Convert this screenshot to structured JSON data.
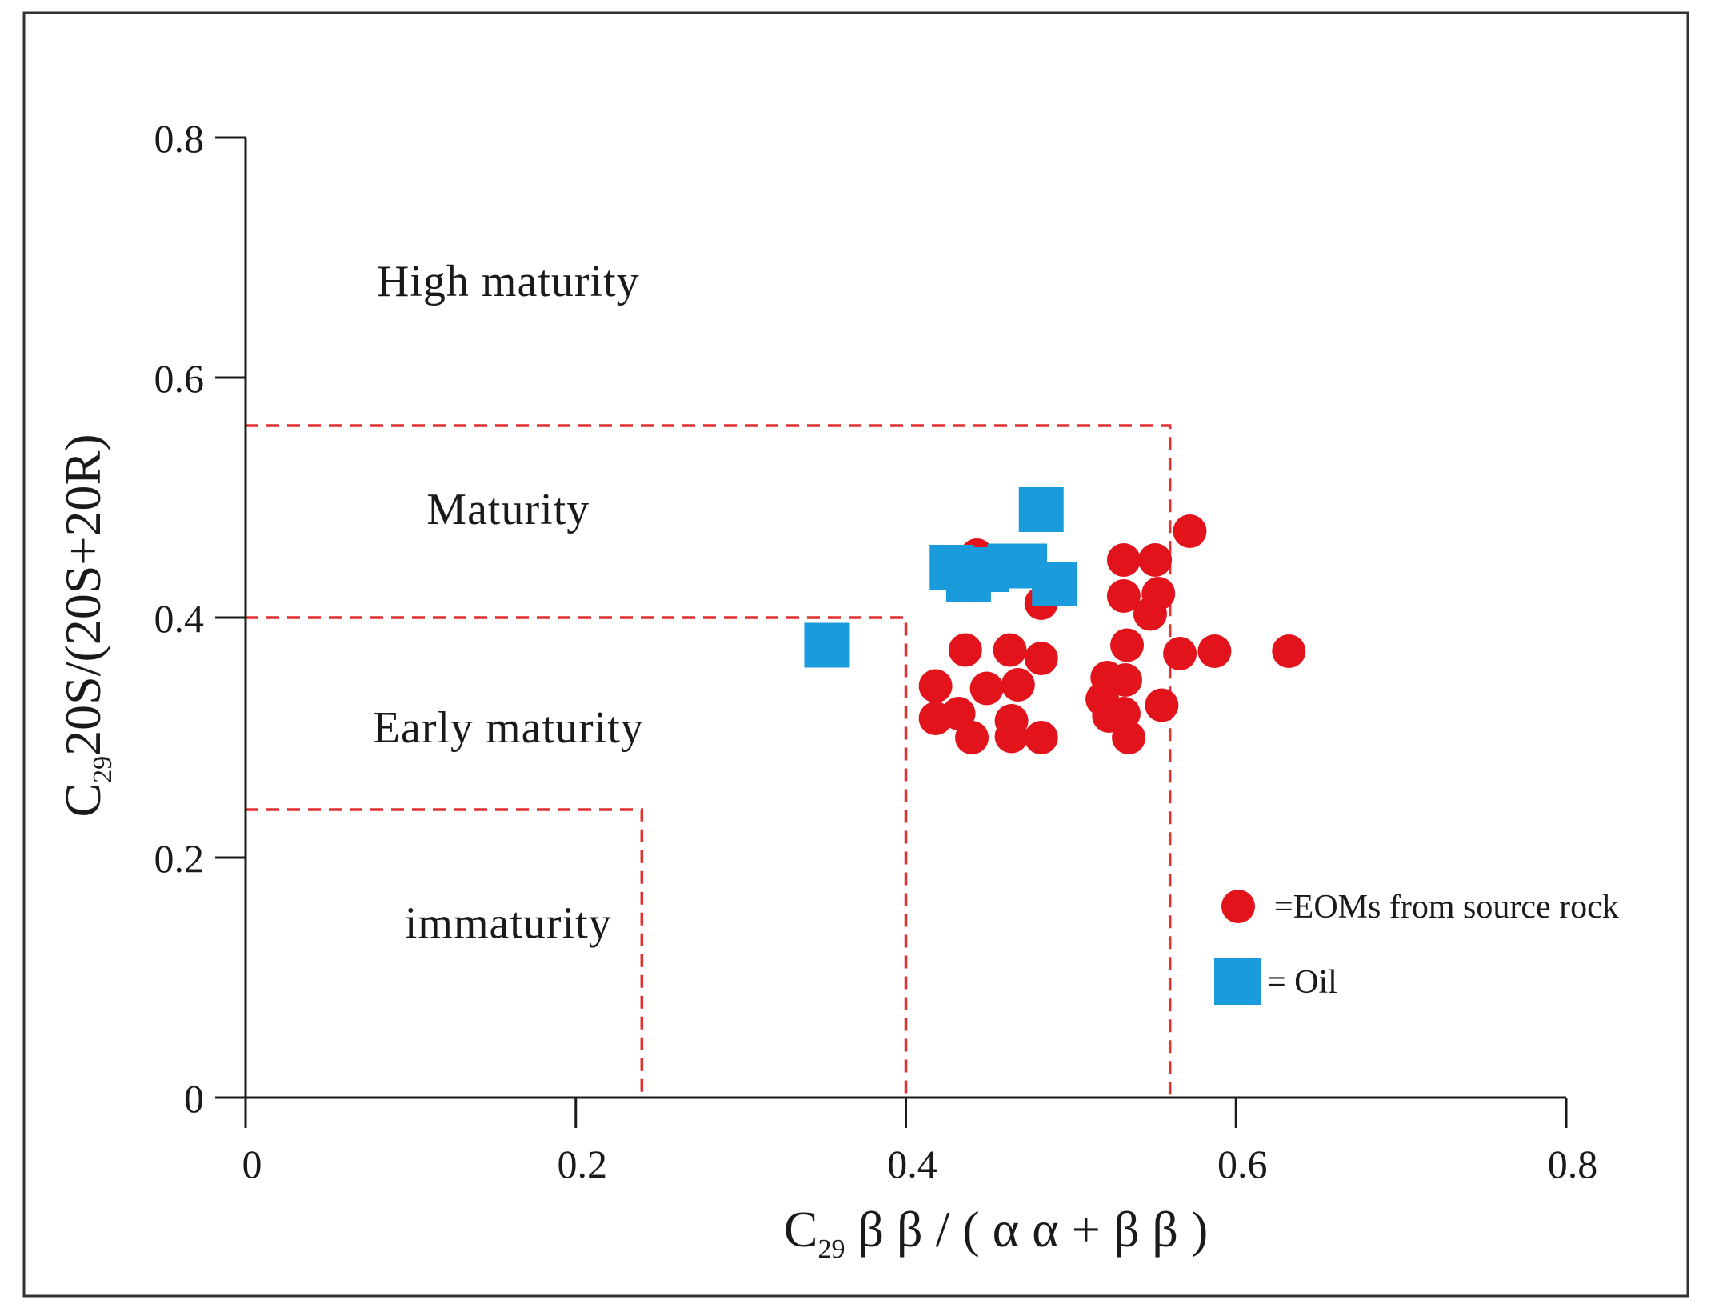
{
  "chart_data": {
    "type": "scatter",
    "title": "",
    "xlabel": {
      "base": "C",
      "sub": "29",
      "rest": "β  β / ( α  α + β  β )"
    },
    "ylabel": {
      "base": "C",
      "sub": "29",
      "rest": "20S/(20S+20R)"
    },
    "xlim": [
      0,
      0.8
    ],
    "ylim": [
      0,
      0.8
    ],
    "x_ticks": [
      0,
      0.2,
      0.4,
      0.6,
      0.8
    ],
    "x_tick_labels": [
      "0",
      "0.2",
      "0.4",
      "0.6",
      "0.8"
    ],
    "y_ticks": [
      0,
      0.2,
      0.4,
      0.6,
      0.8
    ],
    "y_tick_labels": [
      "0",
      "0.2",
      "0.4",
      "0.6",
      "0.8"
    ],
    "zones": [
      {
        "name": "High maturity",
        "label_x": 0.13,
        "label_y": 0.68
      },
      {
        "name": "Maturity",
        "label_x": 0.13,
        "label_y": 0.49
      },
      {
        "name": "Early maturity",
        "label_x": 0.13,
        "label_y": 0.308
      },
      {
        "name": "immaturity",
        "label_x": 0.13,
        "label_y": 0.145
      }
    ],
    "boundaries": [
      {
        "x_max": 0.24,
        "y_max": 0.24
      },
      {
        "x_max": 0.4,
        "y_max": 0.4
      },
      {
        "x_max": 0.56,
        "y_max": 0.56
      }
    ],
    "boundary_color": "#e03030",
    "series": [
      {
        "name": "=EOMs from source rock",
        "marker": "circle",
        "color": "#e3131b",
        "points": [
          [
            0.443,
            0.452
          ],
          [
            0.482,
            0.412
          ],
          [
            0.532,
            0.448
          ],
          [
            0.551,
            0.448
          ],
          [
            0.572,
            0.472
          ],
          [
            0.532,
            0.418
          ],
          [
            0.553,
            0.42
          ],
          [
            0.548,
            0.403
          ],
          [
            0.436,
            0.373
          ],
          [
            0.463,
            0.373
          ],
          [
            0.482,
            0.366
          ],
          [
            0.534,
            0.377
          ],
          [
            0.566,
            0.37
          ],
          [
            0.587,
            0.372
          ],
          [
            0.632,
            0.372
          ],
          [
            0.418,
            0.343
          ],
          [
            0.449,
            0.341
          ],
          [
            0.468,
            0.344
          ],
          [
            0.522,
            0.35
          ],
          [
            0.533,
            0.348
          ],
          [
            0.418,
            0.316
          ],
          [
            0.432,
            0.32
          ],
          [
            0.44,
            0.3
          ],
          [
            0.464,
            0.314
          ],
          [
            0.464,
            0.301
          ],
          [
            0.482,
            0.3
          ],
          [
            0.519,
            0.332
          ],
          [
            0.523,
            0.318
          ],
          [
            0.532,
            0.32
          ],
          [
            0.535,
            0.3
          ],
          [
            0.555,
            0.327
          ]
        ]
      },
      {
        "name": "= Oil",
        "marker": "square",
        "color": "#1a9bdc",
        "points": [
          [
            0.352,
            0.377
          ],
          [
            0.428,
            0.442
          ],
          [
            0.438,
            0.432
          ],
          [
            0.449,
            0.44
          ],
          [
            0.463,
            0.443
          ],
          [
            0.472,
            0.443
          ],
          [
            0.482,
            0.49
          ],
          [
            0.49,
            0.428
          ]
        ]
      }
    ],
    "legend_position": "bottom-right"
  }
}
